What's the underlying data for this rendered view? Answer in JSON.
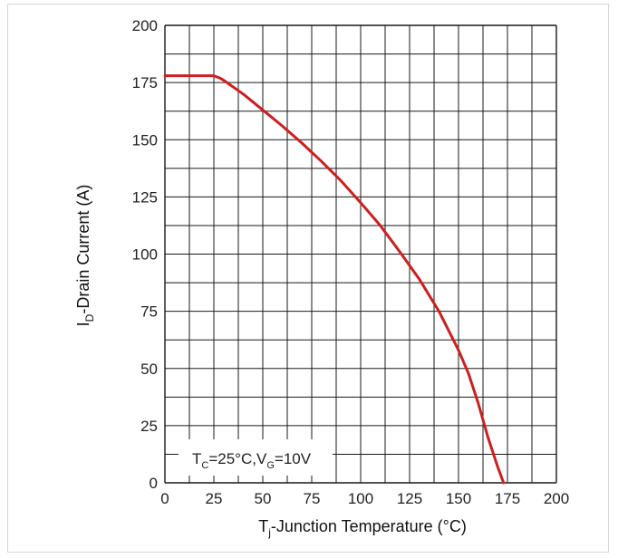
{
  "chart_data": {
    "type": "line",
    "xlabel_main": "T",
    "xlabel_sub": "j",
    "xlabel_rest": "-Junction Temperature (°C)",
    "ylabel_main": "I",
    "ylabel_sub": "D",
    "ylabel_rest": "-Drain Current (A)",
    "xlim": [
      0,
      200
    ],
    "ylim": [
      0,
      200
    ],
    "xticks": [
      0,
      25,
      50,
      75,
      100,
      125,
      150,
      175,
      200
    ],
    "yticks": [
      0,
      25,
      50,
      75,
      100,
      125,
      150,
      175,
      200
    ],
    "grid": true,
    "grid_step_x": 12.5,
    "grid_step_y": 12.5,
    "line_color": "#cc1f1f",
    "annotation": {
      "t": "T",
      "t_sub": "C",
      "t_val": "=25°C,V",
      "v_sub": "G",
      "v_val": "=10V"
    },
    "series": [
      {
        "x": [
          0,
          10,
          20,
          25,
          28,
          30,
          40,
          50,
          60,
          70,
          80,
          90,
          100,
          110,
          120,
          130,
          140,
          150,
          155,
          160,
          165,
          170,
          173
        ],
        "y": [
          178,
          178,
          178,
          178,
          177,
          176,
          170,
          163,
          156,
          148.5,
          140.5,
          132,
          122.5,
          112.5,
          101,
          89,
          75,
          58,
          48,
          35,
          20,
          7,
          0
        ]
      }
    ]
  }
}
